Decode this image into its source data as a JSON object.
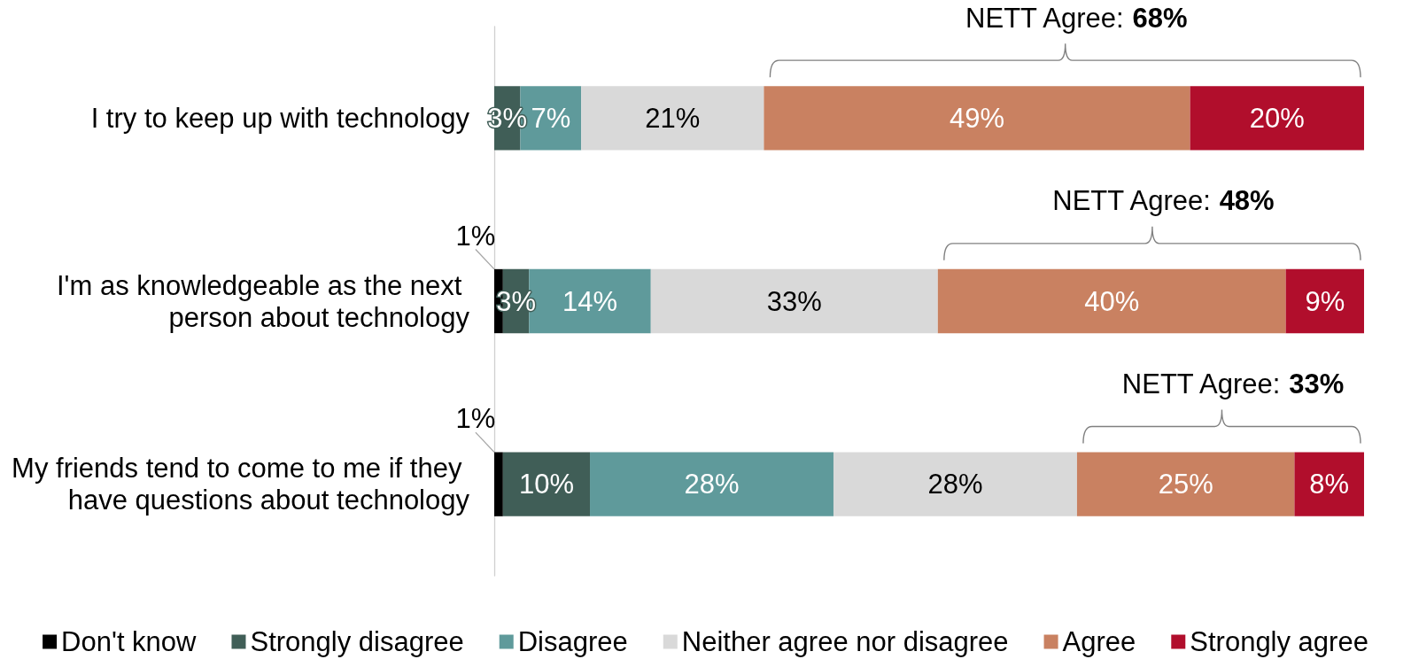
{
  "chart_data": {
    "type": "bar",
    "orientation": "horizontal",
    "stacked": true,
    "categories": [
      "I try to keep up with technology",
      "I'm as knowledgeable as the next person about technology",
      "My friends tend to come to me if they have questions about technology"
    ],
    "series": [
      {
        "name": "Don't know",
        "color": "#000000",
        "values": [
          null,
          1,
          1
        ],
        "value_labels": [
          null,
          "1%",
          "1%"
        ]
      },
      {
        "name": "Strongly disagree",
        "color": "#405e57",
        "values": [
          3,
          3,
          10
        ],
        "value_labels": [
          "3%",
          "3%",
          "10%"
        ]
      },
      {
        "name": "Disagree",
        "color": "#5f9a9b",
        "values": [
          7,
          14,
          28
        ],
        "value_labels": [
          "7%",
          "14%",
          "28%"
        ]
      },
      {
        "name": "Neither agree nor disagree",
        "color": "#d9d9d9",
        "values": [
          21,
          33,
          28
        ],
        "value_labels": [
          "21%",
          "33%",
          "28%"
        ]
      },
      {
        "name": "Agree",
        "color": "#c98161",
        "values": [
          49,
          40,
          25
        ],
        "value_labels": [
          "49%",
          "40%",
          "25%"
        ]
      },
      {
        "name": "Strongly agree",
        "color": "#b10e2c",
        "values": [
          20,
          9,
          8
        ],
        "value_labels": [
          "20%",
          "9%",
          "8%"
        ]
      }
    ],
    "xlim": [
      0,
      100
    ],
    "tick_labels": "y",
    "grid": false,
    "legend": "bottom",
    "annotations": [
      "NETT Agree: 68%",
      "NETT Agree: 48%",
      "NETT Agree: 33%"
    ]
  }
}
